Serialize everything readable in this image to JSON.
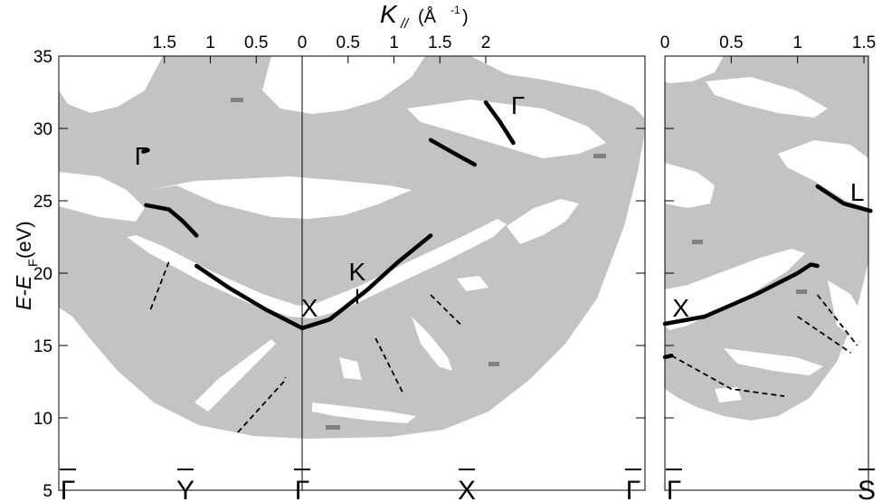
{
  "chart_data": {
    "type": "line",
    "xlabel_main": "K",
    "xlabel_sub": "//",
    "xlabel_unit_open": "(Å",
    "xlabel_unit_exp": "-1",
    "xlabel_unit_close": ")",
    "ylabel_main": "E-E",
    "ylabel_sub": "F",
    "ylabel_unit": " (eV)",
    "ylim": [
      5,
      35
    ],
    "yticks": [
      "5",
      "10",
      "15",
      "20",
      "25",
      "30",
      "35"
    ],
    "grid": false,
    "panels": [
      {
        "name": "left",
        "x_ticks": [
          {
            "label": "1.5",
            "k": 1.5
          },
          {
            "label": "1",
            "k": 1.0
          },
          {
            "label": "0.5",
            "k": 0.5
          },
          {
            "label": "0",
            "k": 0.0
          },
          {
            "label": "0.5",
            "k": 0.5
          },
          {
            "label": "1",
            "k": 1.0
          },
          {
            "label": "1.5",
            "k": 1.5
          },
          {
            "label": "2",
            "k": 2.0
          }
        ],
        "symmetry_points": [
          {
            "label": "Γ",
            "bar": true,
            "position": "left-edge"
          },
          {
            "label": "Y",
            "bar": true,
            "position": "Y"
          },
          {
            "label": "Γ",
            "bar": true,
            "position": "center"
          },
          {
            "label": "X",
            "bar": true,
            "position": "X"
          },
          {
            "label": "Γ",
            "bar": true,
            "position": "right-edge"
          }
        ],
        "band_labels": [
          {
            "label": "Γ",
            "k": -1.75,
            "E": 27.5
          },
          {
            "label": "X",
            "k": 0.08,
            "E": 17.0
          },
          {
            "label": "K",
            "k": 0.6,
            "E": 19.5
          },
          {
            "label": "Γ",
            "k": 2.35,
            "E": 31.0
          }
        ],
        "solid_bands": [
          {
            "name": "main",
            "points": [
              [
                -1.15,
                20.5
              ],
              [
                -0.8,
                19.0
              ],
              [
                -0.4,
                17.5
              ],
              [
                0.0,
                16.2
              ],
              [
                0.3,
                16.8
              ],
              [
                0.7,
                18.8
              ],
              [
                1.05,
                20.8
              ],
              [
                1.4,
                22.6
              ]
            ]
          },
          {
            "name": "upper-left",
            "points": [
              [
                -1.7,
                24.7
              ],
              [
                -1.45,
                24.4
              ],
              [
                -1.3,
                23.6
              ],
              [
                -1.15,
                22.6
              ]
            ]
          },
          {
            "name": "gamma-corner",
            "points": [
              [
                -1.73,
                28.4
              ],
              [
                -1.68,
                28.5
              ]
            ]
          },
          {
            "name": "upper-right-1",
            "points": [
              [
                1.4,
                29.2
              ],
              [
                1.65,
                28.3
              ],
              [
                1.88,
                27.5
              ]
            ]
          },
          {
            "name": "upper-right-2",
            "points": [
              [
                2.0,
                31.8
              ],
              [
                2.15,
                30.5
              ],
              [
                2.3,
                29.0
              ]
            ]
          }
        ],
        "dashed_bands": [
          {
            "points": [
              [
                -1.65,
                17.5
              ],
              [
                -1.45,
                20.8
              ]
            ]
          },
          {
            "points": [
              [
                -0.7,
                9.0
              ],
              [
                -0.2,
                12.5
              ],
              [
                -0.18,
                12.8
              ]
            ]
          },
          {
            "points": [
              [
                0.8,
                15.5
              ],
              [
                1.1,
                11.7
              ]
            ]
          },
          {
            "points": [
              [
                1.4,
                18.5
              ],
              [
                1.75,
                16.3
              ]
            ]
          }
        ]
      },
      {
        "name": "right",
        "x_ticks": [
          {
            "label": "0",
            "k": 0.0
          },
          {
            "label": "0.5",
            "k": 0.5
          },
          {
            "label": "1",
            "k": 1.0
          },
          {
            "label": "1.5",
            "k": 1.5
          }
        ],
        "symmetry_points": [
          {
            "label": "Γ",
            "bar": true,
            "position": "left-edge"
          },
          {
            "label": "S",
            "bar": true,
            "position": "right-edge"
          }
        ],
        "band_labels": [
          {
            "label": "X",
            "k": 0.12,
            "E": 17.0
          },
          {
            "label": "L",
            "k": 1.45,
            "E": 25.0
          }
        ],
        "solid_bands": [
          {
            "name": "main",
            "points": [
              [
                0.0,
                16.5
              ],
              [
                0.3,
                17.0
              ],
              [
                0.7,
                18.6
              ],
              [
                1.0,
                20.0
              ],
              [
                1.1,
                20.6
              ],
              [
                1.15,
                20.5
              ]
            ]
          },
          {
            "name": "upper",
            "points": [
              [
                1.15,
                26.0
              ],
              [
                1.35,
                24.8
              ],
              [
                1.55,
                24.3
              ]
            ]
          },
          {
            "name": "bottom-edge",
            "points": [
              [
                0.0,
                14.2
              ],
              [
                0.05,
                14.3
              ]
            ]
          }
        ],
        "dashed_bands": [
          {
            "points": [
              [
                0.05,
                14.3
              ],
              [
                0.5,
                12.0
              ],
              [
                0.9,
                11.5
              ]
            ]
          },
          {
            "points": [
              [
                1.0,
                17.0
              ],
              [
                1.4,
                14.5
              ]
            ]
          },
          {
            "points": [
              [
                1.15,
                18.5
              ],
              [
                1.45,
                15.0
              ]
            ]
          }
        ]
      }
    ]
  }
}
